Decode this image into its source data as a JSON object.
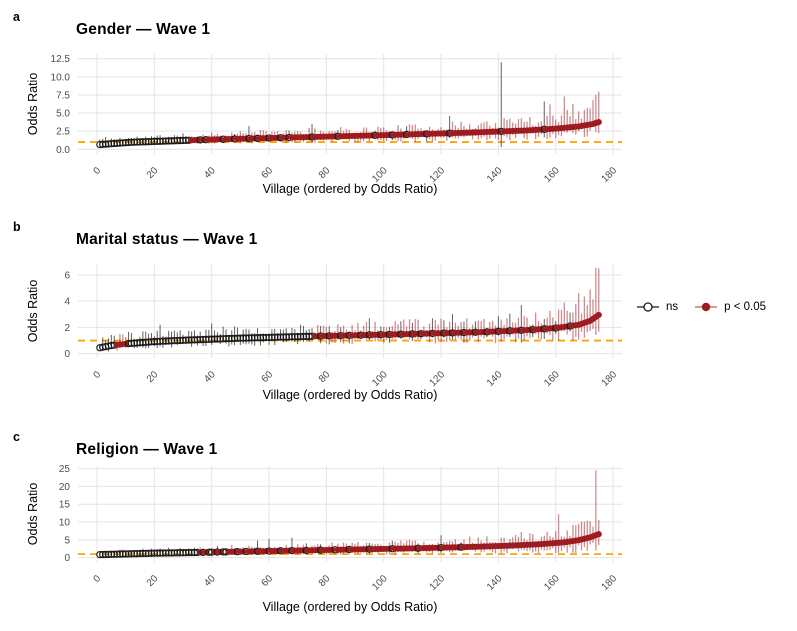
{
  "figure": {
    "background": "#FFFFFF"
  },
  "legend": {
    "ns_label": "ns",
    "sig_label": "p < 0.05"
  },
  "colors": {
    "significant": "#9E1B20",
    "ns": "#1A1A1A",
    "ns_bar": "#2B2B2B",
    "reference_line": "#FFA400",
    "gridline": "#E4E4E4",
    "tick_label": "#4D4D4D",
    "text": "#000000"
  },
  "chart_data": [
    {
      "type": "scatter-errorbar",
      "tag": "a",
      "title": "Gender — Wave 1",
      "ylabel": "Odds Ratio",
      "xlabel": "Village (ordered by Odds Ratio)",
      "n": 175,
      "xticks": [
        0,
        20,
        40,
        60,
        80,
        100,
        120,
        140,
        160,
        180
      ],
      "ytick_values": [
        0,
        2.5,
        5,
        7.5,
        10,
        12.5
      ],
      "ytick_labels": [
        "0.0",
        "2.5",
        "5.0",
        "7.5",
        "10.0",
        "12.5"
      ],
      "ylim": [
        -0.65,
        13.15
      ],
      "refline": 1,
      "grid": true,
      "or_anchors": [
        [
          1,
          0.65
        ],
        [
          6,
          0.8
        ],
        [
          12,
          0.97
        ],
        [
          25,
          1.15
        ],
        [
          40,
          1.35
        ],
        [
          70,
          1.65
        ],
        [
          100,
          1.95
        ],
        [
          130,
          2.3
        ],
        [
          150,
          2.6
        ],
        [
          160,
          2.85
        ],
        [
          168,
          3.15
        ],
        [
          173,
          3.5
        ],
        [
          175,
          3.75
        ]
      ],
      "hi_anchors": [
        [
          1,
          1.35
        ],
        [
          12,
          1.5
        ],
        [
          40,
          2.0
        ],
        [
          70,
          2.4
        ],
        [
          100,
          2.75
        ],
        [
          130,
          3.3
        ],
        [
          150,
          3.95
        ],
        [
          160,
          4.6
        ],
        [
          168,
          5.4
        ],
        [
          175,
          6.8
        ]
      ],
      "lo_anchors": [
        [
          1,
          0.3
        ],
        [
          12,
          0.6
        ],
        [
          40,
          0.95
        ],
        [
          70,
          1.1
        ],
        [
          100,
          1.25
        ],
        [
          130,
          1.5
        ],
        [
          150,
          1.7
        ],
        [
          168,
          2.0
        ],
        [
          175,
          2.4
        ]
      ],
      "sig_start": 33,
      "sig_early": [],
      "ns_after": [
        36,
        38,
        44,
        48,
        53,
        56,
        60,
        64,
        67,
        75,
        84,
        97,
        103,
        108,
        115,
        123,
        141,
        156
      ],
      "spikes": [
        {
          "x": 53,
          "hi": 3.2
        },
        {
          "x": 75,
          "hi": 3.5
        },
        {
          "x": 123,
          "hi": 4.6
        },
        {
          "x": 141,
          "hi": 12.0,
          "lo": 0.3
        },
        {
          "x": 156,
          "hi": 6.6
        },
        {
          "x": 158,
          "hi": 6.2
        },
        {
          "x": 163,
          "hi": 7.3
        },
        {
          "x": 174,
          "hi": 7.5
        }
      ],
      "seed": 11
    },
    {
      "type": "scatter-errorbar",
      "tag": "b",
      "title": "Marital status — Wave 1",
      "ylabel": "Odds Ratio",
      "xlabel": "Village (ordered by Odds Ratio)",
      "n": 175,
      "xticks": [
        0,
        20,
        40,
        60,
        80,
        100,
        120,
        140,
        160,
        180
      ],
      "ytick_values": [
        0,
        2,
        4,
        6
      ],
      "ytick_labels": [
        "0",
        "2",
        "4",
        "6"
      ],
      "ylim": [
        -0.33,
        6.83
      ],
      "refline": 1,
      "grid": true,
      "or_anchors": [
        [
          1,
          0.45
        ],
        [
          5,
          0.62
        ],
        [
          10,
          0.75
        ],
        [
          20,
          0.92
        ],
        [
          30,
          1.02
        ],
        [
          50,
          1.18
        ],
        [
          80,
          1.35
        ],
        [
          110,
          1.5
        ],
        [
          135,
          1.65
        ],
        [
          150,
          1.8
        ],
        [
          160,
          1.95
        ],
        [
          168,
          2.2
        ],
        [
          172,
          2.5
        ],
        [
          175,
          2.95
        ]
      ],
      "hi_anchors": [
        [
          1,
          1.1
        ],
        [
          10,
          1.3
        ],
        [
          30,
          1.6
        ],
        [
          80,
          1.95
        ],
        [
          120,
          2.3
        ],
        [
          150,
          2.7
        ],
        [
          165,
          3.3
        ],
        [
          172,
          4.2
        ],
        [
          175,
          6.5
        ]
      ],
      "lo_anchors": [
        [
          1,
          0.2
        ],
        [
          10,
          0.45
        ],
        [
          30,
          0.65
        ],
        [
          80,
          0.9
        ],
        [
          120,
          1.0
        ],
        [
          150,
          1.1
        ],
        [
          175,
          1.5
        ]
      ],
      "sig_start": 76,
      "sig_early": [
        7,
        8,
        9,
        10
      ],
      "ns_after": [
        78,
        81,
        85,
        88,
        92,
        95,
        99,
        102,
        106,
        110,
        113,
        117,
        121,
        124,
        128,
        132,
        136,
        140,
        144,
        148,
        152,
        156,
        160,
        165
      ],
      "spikes": [
        {
          "x": 22,
          "hi": 2.2
        },
        {
          "x": 40,
          "hi": 2.3
        },
        {
          "x": 95,
          "hi": 2.7
        },
        {
          "x": 124,
          "hi": 3.0
        },
        {
          "x": 148,
          "hi": 3.7
        },
        {
          "x": 167,
          "hi": 3.8
        },
        {
          "x": 172,
          "hi": 4.9
        },
        {
          "x": 175,
          "hi": 6.5
        }
      ],
      "seed": 23
    },
    {
      "type": "scatter-errorbar",
      "tag": "c",
      "title": "Religion — Wave 1",
      "ylabel": "Odds Ratio",
      "xlabel": "Village (ordered by Odds Ratio)",
      "n": 175,
      "xticks": [
        0,
        20,
        40,
        60,
        80,
        100,
        120,
        140,
        160,
        180
      ],
      "ytick_values": [
        0,
        5,
        10,
        15,
        20,
        25
      ],
      "ytick_labels": [
        "0",
        "5",
        "10",
        "15",
        "20",
        "25"
      ],
      "ylim": [
        -1.22,
        25.72
      ],
      "refline": 1,
      "grid": true,
      "or_anchors": [
        [
          1,
          0.85
        ],
        [
          8,
          1.0
        ],
        [
          20,
          1.25
        ],
        [
          35,
          1.45
        ],
        [
          50,
          1.7
        ],
        [
          70,
          2.0
        ],
        [
          90,
          2.3
        ],
        [
          110,
          2.6
        ],
        [
          130,
          3.0
        ],
        [
          145,
          3.4
        ],
        [
          155,
          3.8
        ],
        [
          163,
          4.3
        ],
        [
          168,
          4.9
        ],
        [
          172,
          5.7
        ],
        [
          175,
          6.6
        ]
      ],
      "hi_anchors": [
        [
          1,
          1.6
        ],
        [
          20,
          2.1
        ],
        [
          50,
          2.9
        ],
        [
          90,
          3.6
        ],
        [
          130,
          4.6
        ],
        [
          150,
          5.6
        ],
        [
          163,
          7.0
        ],
        [
          170,
          8.5
        ],
        [
          175,
          10.0
        ]
      ],
      "lo_anchors": [
        [
          1,
          0.45
        ],
        [
          20,
          0.75
        ],
        [
          50,
          1.0
        ],
        [
          90,
          1.3
        ],
        [
          130,
          1.6
        ],
        [
          155,
          1.9
        ],
        [
          175,
          2.6
        ]
      ],
      "sig_start": 46,
      "sig_early": [
        36,
        38,
        41,
        43
      ],
      "ns_after": [
        49,
        52,
        56,
        60,
        64,
        68,
        73,
        78,
        83,
        88,
        95,
        103,
        112,
        120,
        127
      ],
      "spikes": [
        {
          "x": 56,
          "hi": 4.8
        },
        {
          "x": 60,
          "hi": 5.2
        },
        {
          "x": 68,
          "hi": 5.6
        },
        {
          "x": 120,
          "hi": 6.3
        },
        {
          "x": 130,
          "hi": 5.9
        },
        {
          "x": 148,
          "hi": 7.2
        },
        {
          "x": 161,
          "hi": 12.2
        },
        {
          "x": 166,
          "hi": 9.2
        },
        {
          "x": 174,
          "hi": 24.5
        }
      ],
      "seed": 37
    }
  ]
}
